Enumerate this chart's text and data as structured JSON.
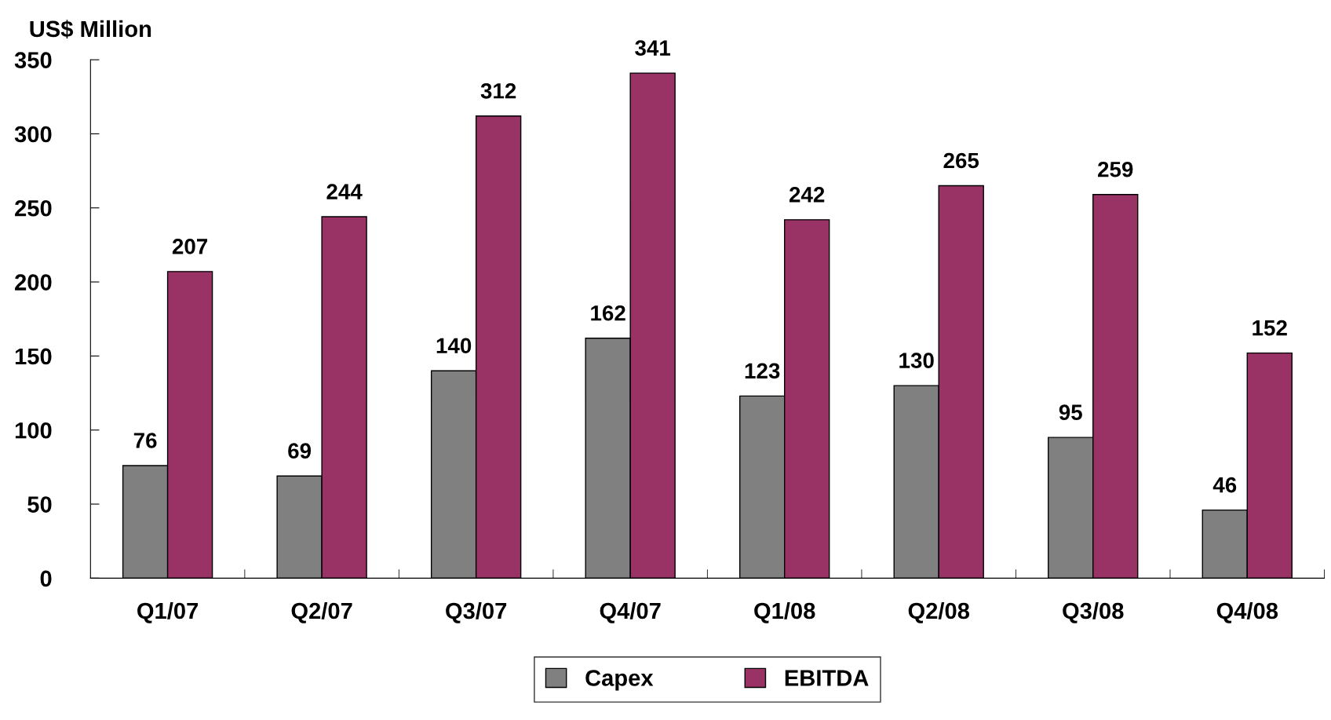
{
  "chart_data": {
    "type": "bar",
    "ylabel": "US$ Million",
    "categories": [
      "Q1/07",
      "Q2/07",
      "Q3/07",
      "Q4/07",
      "Q1/08",
      "Q2/08",
      "Q3/08",
      "Q4/08"
    ],
    "series": [
      {
        "name": "Capex",
        "color": "#808080",
        "values": [
          76,
          69,
          140,
          162,
          123,
          130,
          95,
          46
        ]
      },
      {
        "name": "EBITDA",
        "color": "#993366",
        "values": [
          207,
          244,
          312,
          341,
          242,
          265,
          259,
          152
        ]
      }
    ],
    "ylim": [
      0,
      350
    ],
    "yticks": [
      0,
      50,
      100,
      150,
      200,
      250,
      300,
      350
    ],
    "grid": false,
    "legend": "bottom",
    "data_labels": true
  }
}
